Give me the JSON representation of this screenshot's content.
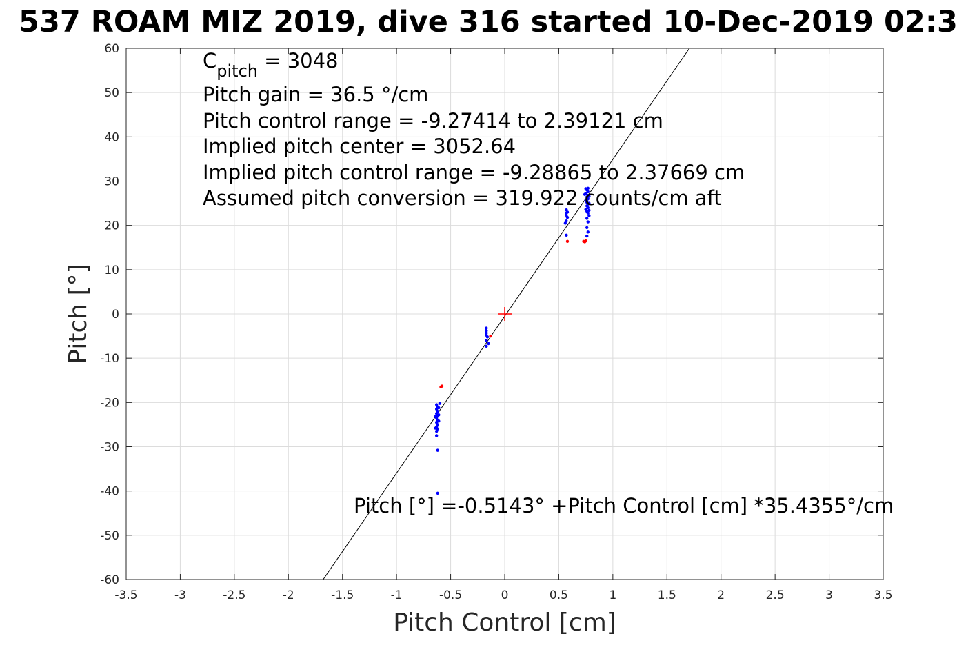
{
  "chart_data": {
    "type": "scatter",
    "title": "537 ROAM MIZ 2019, dive 316 started 10-Dec-2019 02:3",
    "xlabel": "Pitch Control [cm]",
    "ylabel": "Pitch [°]",
    "xlim": [
      -3.5,
      3.5
    ],
    "ylim": [
      -60,
      60
    ],
    "xticks": [
      -3.5,
      -3,
      -2.5,
      -2,
      -1.5,
      -1,
      -0.5,
      0,
      0.5,
      1,
      1.5,
      2,
      2.5,
      3,
      3.5
    ],
    "xtick_labels": [
      "-3.5",
      "-3",
      "-2.5",
      "-2",
      "-1.5",
      "-1",
      "-0.5",
      "0",
      "0.5",
      "1",
      "1.5",
      "2",
      "2.5",
      "3",
      "3.5"
    ],
    "yticks": [
      -60,
      -50,
      -40,
      -30,
      -20,
      -10,
      0,
      10,
      20,
      30,
      40,
      50,
      60
    ],
    "ytick_labels": [
      "-60",
      "-50",
      "-40",
      "-30",
      "-20",
      "-10",
      "0",
      "10",
      "20",
      "30",
      "40",
      "50",
      "60"
    ],
    "grid": true,
    "colors": {
      "blue": "#0000ff",
      "red": "#ff0000",
      "line": "#000000",
      "grid": "#dcdcdc"
    },
    "fit_line": {
      "intercept": -0.5143,
      "slope": 35.4355
    },
    "center_marker": {
      "x": 0,
      "y": 0,
      "symbol": "plus",
      "color": "red"
    },
    "series": [
      {
        "color": "blue",
        "points": [
          [
            -0.63,
            -20.5
          ],
          [
            -0.62,
            -21.0
          ],
          [
            -0.63,
            -21.5
          ],
          [
            -0.62,
            -22.0
          ],
          [
            -0.63,
            -22.5
          ],
          [
            -0.62,
            -23.0
          ],
          [
            -0.63,
            -23.5
          ],
          [
            -0.62,
            -24.0
          ],
          [
            -0.63,
            -24.5
          ],
          [
            -0.62,
            -25.0
          ],
          [
            -0.63,
            -25.5
          ],
          [
            -0.62,
            -26.0
          ],
          [
            -0.63,
            -26.5
          ],
          [
            -0.63,
            -27.5
          ],
          [
            -0.61,
            -21.2
          ],
          [
            -0.61,
            -22.8
          ],
          [
            -0.61,
            -24.2
          ],
          [
            -0.6,
            -20.2
          ],
          [
            -0.64,
            -23.2
          ],
          [
            -0.64,
            -25.8
          ],
          [
            -0.62,
            -30.8
          ],
          [
            -0.62,
            -40.5
          ],
          [
            -0.17,
            -3.2
          ],
          [
            -0.17,
            -3.8
          ],
          [
            -0.17,
            -4.3
          ],
          [
            -0.17,
            -4.8
          ],
          [
            -0.16,
            -5.2
          ],
          [
            -0.17,
            -6.0
          ],
          [
            -0.17,
            -7.3
          ],
          [
            -0.15,
            -6.7
          ],
          [
            0.57,
            23.5
          ],
          [
            0.57,
            22.8
          ],
          [
            0.57,
            22.3
          ],
          [
            0.58,
            21.8
          ],
          [
            0.57,
            21.0
          ],
          [
            0.56,
            20.5
          ],
          [
            0.57,
            17.8
          ],
          [
            0.58,
            23.0
          ],
          [
            0.75,
            28.3
          ],
          [
            0.76,
            28.0
          ],
          [
            0.77,
            27.6
          ],
          [
            0.75,
            27.2
          ],
          [
            0.77,
            26.8
          ],
          [
            0.76,
            26.4
          ],
          [
            0.77,
            26.0
          ],
          [
            0.75,
            25.6
          ],
          [
            0.76,
            25.2
          ],
          [
            0.77,
            24.8
          ],
          [
            0.76,
            24.4
          ],
          [
            0.77,
            24.0
          ],
          [
            0.75,
            23.6
          ],
          [
            0.76,
            23.2
          ],
          [
            0.77,
            22.8
          ],
          [
            0.78,
            22.2
          ],
          [
            0.76,
            21.6
          ],
          [
            0.77,
            20.8
          ],
          [
            0.76,
            19.5
          ],
          [
            0.77,
            18.5
          ],
          [
            0.76,
            17.6
          ],
          [
            0.78,
            26.6
          ],
          [
            0.78,
            25.0
          ],
          [
            0.74,
            27.0
          ],
          [
            0.77,
            28.4
          ],
          [
            0.76,
            25.8
          ],
          [
            0.78,
            23.4
          ]
        ]
      },
      {
        "color": "red",
        "points": [
          [
            -0.58,
            -16.3
          ],
          [
            -0.59,
            -16.5
          ],
          [
            -0.13,
            -5.0
          ],
          [
            0.58,
            16.4
          ],
          [
            0.73,
            16.4
          ],
          [
            0.74,
            16.3
          ],
          [
            0.75,
            16.5
          ]
        ]
      }
    ]
  },
  "annotations": {
    "cpitch_main": "C",
    "cpitch_sub": "pitch",
    "cpitch_value": " = 3048",
    "gain": "Pitch gain = 36.5 °/cm",
    "control_range": "Pitch control range = -9.27414 to 2.39121 cm",
    "implied_center": "Implied pitch center = 3052.64",
    "implied_range": "Implied pitch control range = -9.28865 to 2.37669 cm",
    "conversion": "Assumed pitch conversion = 319.922 counts/cm aft",
    "fit_equation": "Pitch [°] =-0.5143° +Pitch Control [cm] *35.4355°/cm"
  }
}
